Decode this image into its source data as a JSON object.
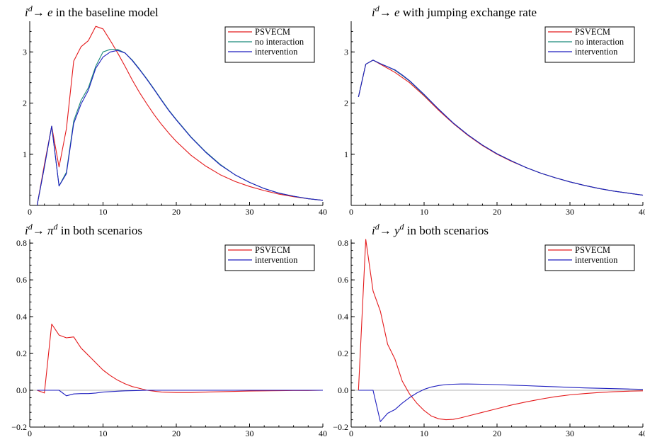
{
  "colors": {
    "red": "#e41a1c",
    "green": "#1b8a7a",
    "blue": "#1f1fbf",
    "zero": "#b4b4b4",
    "axis": "#000000"
  },
  "chart_data": [
    {
      "type": "line",
      "title": {
        "sup1": "d",
        "mid": "→ ",
        "var": "e",
        "sup2": "",
        "rest": " in the baseline model"
      },
      "xlim": [
        0,
        40
      ],
      "ylim": [
        0,
        3.6
      ],
      "xticks": [
        0,
        10,
        20,
        30,
        40
      ],
      "yticks": [
        1,
        2,
        3
      ],
      "zero_line": false,
      "series": [
        {
          "name": "PSVECM",
          "color": "red",
          "x": [
            1,
            2,
            3,
            4,
            5,
            6,
            7,
            8,
            9,
            10,
            11,
            12,
            13,
            14,
            15,
            16,
            17,
            18,
            19,
            20,
            22,
            24,
            26,
            28,
            30,
            32,
            34,
            36,
            38,
            40
          ],
          "y": [
            0,
            0.8,
            1.55,
            0.75,
            1.5,
            2.82,
            3.1,
            3.22,
            3.5,
            3.45,
            3.22,
            2.98,
            2.72,
            2.45,
            2.2,
            1.98,
            1.77,
            1.58,
            1.41,
            1.25,
            0.98,
            0.77,
            0.6,
            0.47,
            0.37,
            0.29,
            0.22,
            0.17,
            0.13,
            0.1
          ]
        },
        {
          "name": "no interaction",
          "color": "green",
          "x": [
            1,
            2,
            3,
            4,
            5,
            6,
            7,
            8,
            9,
            10,
            11,
            12,
            13,
            14,
            15,
            16,
            17,
            18,
            19,
            20,
            22,
            24,
            26,
            28,
            30,
            32,
            34,
            36,
            38,
            40
          ],
          "y": [
            0,
            0.75,
            1.55,
            0.38,
            0.65,
            1.65,
            2.05,
            2.3,
            2.72,
            3.0,
            3.05,
            3.05,
            2.98,
            2.84,
            2.66,
            2.47,
            2.27,
            2.06,
            1.86,
            1.68,
            1.34,
            1.05,
            0.8,
            0.6,
            0.45,
            0.33,
            0.24,
            0.18,
            0.13,
            0.1
          ]
        },
        {
          "name": "intervention",
          "color": "blue",
          "x": [
            1,
            2,
            3,
            4,
            5,
            6,
            7,
            8,
            9,
            10,
            11,
            12,
            13,
            14,
            15,
            16,
            17,
            18,
            19,
            20,
            22,
            24,
            26,
            28,
            30,
            32,
            34,
            36,
            38,
            40
          ],
          "y": [
            0,
            0.75,
            1.55,
            0.38,
            0.62,
            1.6,
            1.98,
            2.25,
            2.68,
            2.9,
            3.0,
            3.03,
            2.98,
            2.83,
            2.65,
            2.46,
            2.26,
            2.05,
            1.85,
            1.67,
            1.33,
            1.04,
            0.79,
            0.6,
            0.45,
            0.33,
            0.24,
            0.18,
            0.13,
            0.1
          ]
        }
      ]
    },
    {
      "type": "line",
      "title": {
        "sup1": "d",
        "mid": "→ ",
        "var": "e",
        "sup2": "",
        "rest": " with jumping exchange rate"
      },
      "xlim": [
        0,
        40
      ],
      "ylim": [
        0,
        3.6
      ],
      "xticks": [
        0,
        10,
        20,
        30,
        40
      ],
      "yticks": [
        1,
        2,
        3
      ],
      "zero_line": false,
      "series": [
        {
          "name": "PSVECM",
          "color": "red",
          "x": [
            1,
            2,
            3,
            4,
            5,
            6,
            7,
            8,
            10,
            12,
            14,
            16,
            18,
            20,
            22,
            24,
            26,
            28,
            30,
            32,
            34,
            36,
            38,
            40
          ],
          "y": [
            2.12,
            2.76,
            2.84,
            2.76,
            2.68,
            2.6,
            2.5,
            2.4,
            2.14,
            1.86,
            1.6,
            1.37,
            1.17,
            1.0,
            0.86,
            0.74,
            0.63,
            0.54,
            0.46,
            0.39,
            0.33,
            0.28,
            0.24,
            0.2
          ]
        },
        {
          "name": "no interaction",
          "color": "green",
          "x": [
            1,
            2,
            3,
            4,
            5,
            6,
            7,
            8,
            10,
            12,
            14,
            16,
            18,
            20,
            22,
            24,
            26,
            28,
            30,
            32,
            34,
            36,
            38,
            40
          ],
          "y": [
            2.12,
            2.76,
            2.84,
            2.77,
            2.71,
            2.64,
            2.54,
            2.43,
            2.16,
            1.88,
            1.61,
            1.38,
            1.18,
            1.01,
            0.87,
            0.74,
            0.63,
            0.54,
            0.46,
            0.39,
            0.33,
            0.28,
            0.24,
            0.2
          ]
        },
        {
          "name": "intervention",
          "color": "blue",
          "x": [
            1,
            2,
            3,
            4,
            5,
            6,
            7,
            8,
            10,
            12,
            14,
            16,
            18,
            20,
            22,
            24,
            26,
            28,
            30,
            32,
            34,
            36,
            38,
            40
          ],
          "y": [
            2.12,
            2.76,
            2.84,
            2.77,
            2.71,
            2.65,
            2.55,
            2.44,
            2.17,
            1.88,
            1.61,
            1.38,
            1.18,
            1.01,
            0.87,
            0.74,
            0.63,
            0.54,
            0.46,
            0.39,
            0.33,
            0.28,
            0.24,
            0.2
          ]
        }
      ]
    },
    {
      "type": "line",
      "title": {
        "sup1": "d",
        "mid": "→ ",
        "var": "π",
        "sup2": "d",
        "rest": " in both scenarios"
      },
      "xlim": [
        0,
        40
      ],
      "ylim": [
        -0.2,
        0.82
      ],
      "xticks": [
        0,
        10,
        20,
        30,
        40
      ],
      "yticks": [
        -0.2,
        0.0,
        0.2,
        0.4,
        0.6,
        0.8
      ],
      "ytick_labels": [
        "−0.2",
        "0.0",
        "0.2",
        "0.4",
        "0.6",
        "0.8"
      ],
      "zero_line": true,
      "series": [
        {
          "name": "PSVECM",
          "color": "red",
          "x": [
            1,
            2,
            3,
            4,
            5,
            6,
            7,
            8,
            9,
            10,
            11,
            12,
            13,
            14,
            15,
            16,
            17,
            18,
            20,
            22,
            24,
            26,
            28,
            30,
            32,
            34,
            36,
            38,
            40
          ],
          "y": [
            0,
            -0.015,
            0.36,
            0.3,
            0.285,
            0.29,
            0.23,
            0.19,
            0.15,
            0.11,
            0.08,
            0.055,
            0.035,
            0.02,
            0.01,
            0.0,
            -0.005,
            -0.01,
            -0.012,
            -0.012,
            -0.01,
            -0.008,
            -0.006,
            -0.004,
            -0.003,
            -0.002,
            -0.001,
            -0.001,
            0
          ]
        },
        {
          "name": "intervention",
          "color": "blue",
          "x": [
            1,
            2,
            3,
            4,
            5,
            6,
            7,
            8,
            9,
            10,
            11,
            12,
            13,
            14,
            15,
            16,
            17,
            18,
            20,
            22,
            24,
            26,
            28,
            30,
            32,
            34,
            36,
            38,
            40
          ],
          "y": [
            0,
            0,
            0,
            0,
            -0.03,
            -0.02,
            -0.018,
            -0.018,
            -0.015,
            -0.01,
            -0.007,
            -0.005,
            -0.003,
            -0.002,
            -0.001,
            0,
            0,
            0,
            0,
            0,
            0,
            0,
            0,
            0,
            0,
            0,
            0,
            0,
            0
          ]
        }
      ]
    },
    {
      "type": "line",
      "title": {
        "sup1": "d",
        "mid": "→ ",
        "var": "y",
        "sup2": "d",
        "rest": "  in both scenarios"
      },
      "xlim": [
        0,
        40
      ],
      "ylim": [
        -0.2,
        0.82
      ],
      "xticks": [
        0,
        10,
        20,
        30,
        40
      ],
      "yticks": [
        -0.2,
        0.0,
        0.2,
        0.4,
        0.6,
        0.8
      ],
      "ytick_labels": [
        "−0.2",
        "0.0",
        "0.2",
        "0.4",
        "0.6",
        "0.8"
      ],
      "zero_line": true,
      "series": [
        {
          "name": "PSVECM",
          "color": "red",
          "x": [
            1,
            2,
            3,
            4,
            5,
            6,
            7,
            8,
            9,
            10,
            11,
            12,
            13,
            14,
            15,
            16,
            18,
            20,
            22,
            24,
            26,
            28,
            30,
            32,
            34,
            36,
            38,
            40
          ],
          "y": [
            0,
            0.82,
            0.54,
            0.43,
            0.25,
            0.17,
            0.05,
            -0.02,
            -0.07,
            -0.11,
            -0.14,
            -0.155,
            -0.16,
            -0.158,
            -0.15,
            -0.14,
            -0.12,
            -0.1,
            -0.08,
            -0.063,
            -0.048,
            -0.035,
            -0.025,
            -0.018,
            -0.012,
            -0.008,
            -0.005,
            -0.003
          ]
        },
        {
          "name": "intervention",
          "color": "blue",
          "x": [
            1,
            2,
            3,
            4,
            5,
            6,
            7,
            8,
            9,
            10,
            11,
            12,
            13,
            14,
            15,
            16,
            18,
            20,
            22,
            24,
            26,
            28,
            30,
            32,
            34,
            36,
            38,
            40
          ],
          "y": [
            0,
            0,
            0,
            -0.17,
            -0.125,
            -0.105,
            -0.07,
            -0.04,
            -0.015,
            0.005,
            0.018,
            0.026,
            0.031,
            0.033,
            0.034,
            0.034,
            0.033,
            0.031,
            0.028,
            0.025,
            0.022,
            0.019,
            0.016,
            0.013,
            0.011,
            0.009,
            0.007,
            0.005
          ]
        }
      ]
    }
  ]
}
